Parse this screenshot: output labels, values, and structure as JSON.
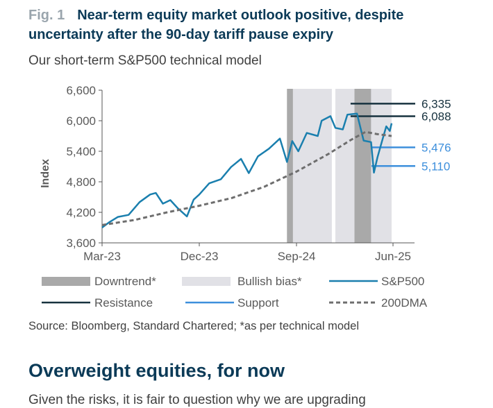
{
  "figure": {
    "number": "Fig. 1",
    "title": "Near-term equity market outlook positive, despite uncertainty after the 90-day tariff pause expiry",
    "subtitle": "Our short-term S&P500 technical model",
    "source": "Source: Bloomberg, Standard Chartered; *as per technical model"
  },
  "section": {
    "heading": "Overweight equities, for now",
    "body_start": "Given the risks, it is fair to question why we are upgrading"
  },
  "colors": {
    "sp500": "#1a7fae",
    "resistance": "#17323f",
    "support": "#3d8fdc",
    "dma200": "#6e6e6e",
    "downtrend": "#a9a9a9",
    "bullish": "#e1e1e6",
    "title": "#0b3a57"
  },
  "chart_data": {
    "type": "line",
    "ylabel": "Index",
    "ylim": [
      3600,
      6600
    ],
    "y_ticks": [
      "3,600",
      "4,200",
      "4,800",
      "5,400",
      "6,000",
      "6,600"
    ],
    "x_ticks": [
      "Mar-23",
      "Dec-23",
      "Sep-24",
      "Jun-25"
    ],
    "x_tick_dates": [
      "2023-03-01",
      "2023-12-01",
      "2024-09-01",
      "2025-06-01"
    ],
    "xlim": [
      "2023-03-01",
      "2025-07-15"
    ],
    "grid": false,
    "legend": [
      "Downtrend*",
      "Bullish bias*",
      "S&P500",
      "Resistance",
      "Support",
      "200DMA"
    ],
    "shaded_regions": [
      {
        "kind": "Downtrend*",
        "start": "2024-08-05",
        "end": "2024-08-22"
      },
      {
        "kind": "Bullish bias*",
        "start": "2024-08-22",
        "end": "2024-12-10"
      },
      {
        "kind": "Bullish bias*",
        "start": "2024-12-20",
        "end": "2025-02-12"
      },
      {
        "kind": "Downtrend*",
        "start": "2025-02-12",
        "end": "2025-03-31"
      },
      {
        "kind": "Bullish bias*",
        "start": "2025-03-31",
        "end": "2025-05-28"
      }
    ],
    "levels": [
      {
        "name": "Resistance",
        "value": 6335,
        "label": "6,335",
        "start": "2025-02-01"
      },
      {
        "name": "Resistance",
        "value": 6088,
        "label": "6,088",
        "start": "2025-02-01"
      },
      {
        "name": "Support",
        "value": 5476,
        "label": "5,476",
        "start": "2025-04-01"
      },
      {
        "name": "Support",
        "value": 5110,
        "label": "5,110",
        "start": "2025-04-01"
      }
    ],
    "series": [
      {
        "name": "S&P500",
        "x": [
          "2023-03-01",
          "2023-03-20",
          "2023-04-15",
          "2023-05-15",
          "2023-06-15",
          "2023-07-15",
          "2023-07-31",
          "2023-08-20",
          "2023-09-10",
          "2023-10-01",
          "2023-10-27",
          "2023-11-15",
          "2023-12-01",
          "2023-12-29",
          "2024-01-31",
          "2024-02-29",
          "2024-03-28",
          "2024-04-19",
          "2024-05-15",
          "2024-06-15",
          "2024-07-16",
          "2024-08-05",
          "2024-08-20",
          "2024-09-06",
          "2024-09-30",
          "2024-10-31",
          "2024-11-11",
          "2024-12-06",
          "2024-12-20",
          "2025-01-10",
          "2025-01-23",
          "2025-02-19",
          "2025-03-10",
          "2025-03-31",
          "2025-04-08",
          "2025-04-18",
          "2025-05-01",
          "2025-05-13",
          "2025-05-23",
          "2025-05-28"
        ],
        "y": [
          3900,
          4000,
          4110,
          4150,
          4400,
          4550,
          4580,
          4370,
          4440,
          4280,
          4120,
          4450,
          4550,
          4770,
          4850,
          5090,
          5250,
          4970,
          5300,
          5450,
          5650,
          5190,
          5600,
          5400,
          5760,
          5700,
          6000,
          6090,
          5860,
          5830,
          6120,
          6140,
          5610,
          5580,
          4980,
          5280,
          5600,
          5890,
          5800,
          5950
        ]
      },
      {
        "name": "200DMA",
        "x": [
          "2023-03-01",
          "2023-06-01",
          "2023-09-01",
          "2023-12-01",
          "2024-03-01",
          "2024-06-01",
          "2024-09-01",
          "2024-12-01",
          "2025-02-01",
          "2025-03-15",
          "2025-04-15",
          "2025-05-28"
        ],
        "y": [
          3950,
          4050,
          4200,
          4330,
          4480,
          4700,
          5000,
          5350,
          5620,
          5780,
          5740,
          5700
        ]
      }
    ]
  }
}
